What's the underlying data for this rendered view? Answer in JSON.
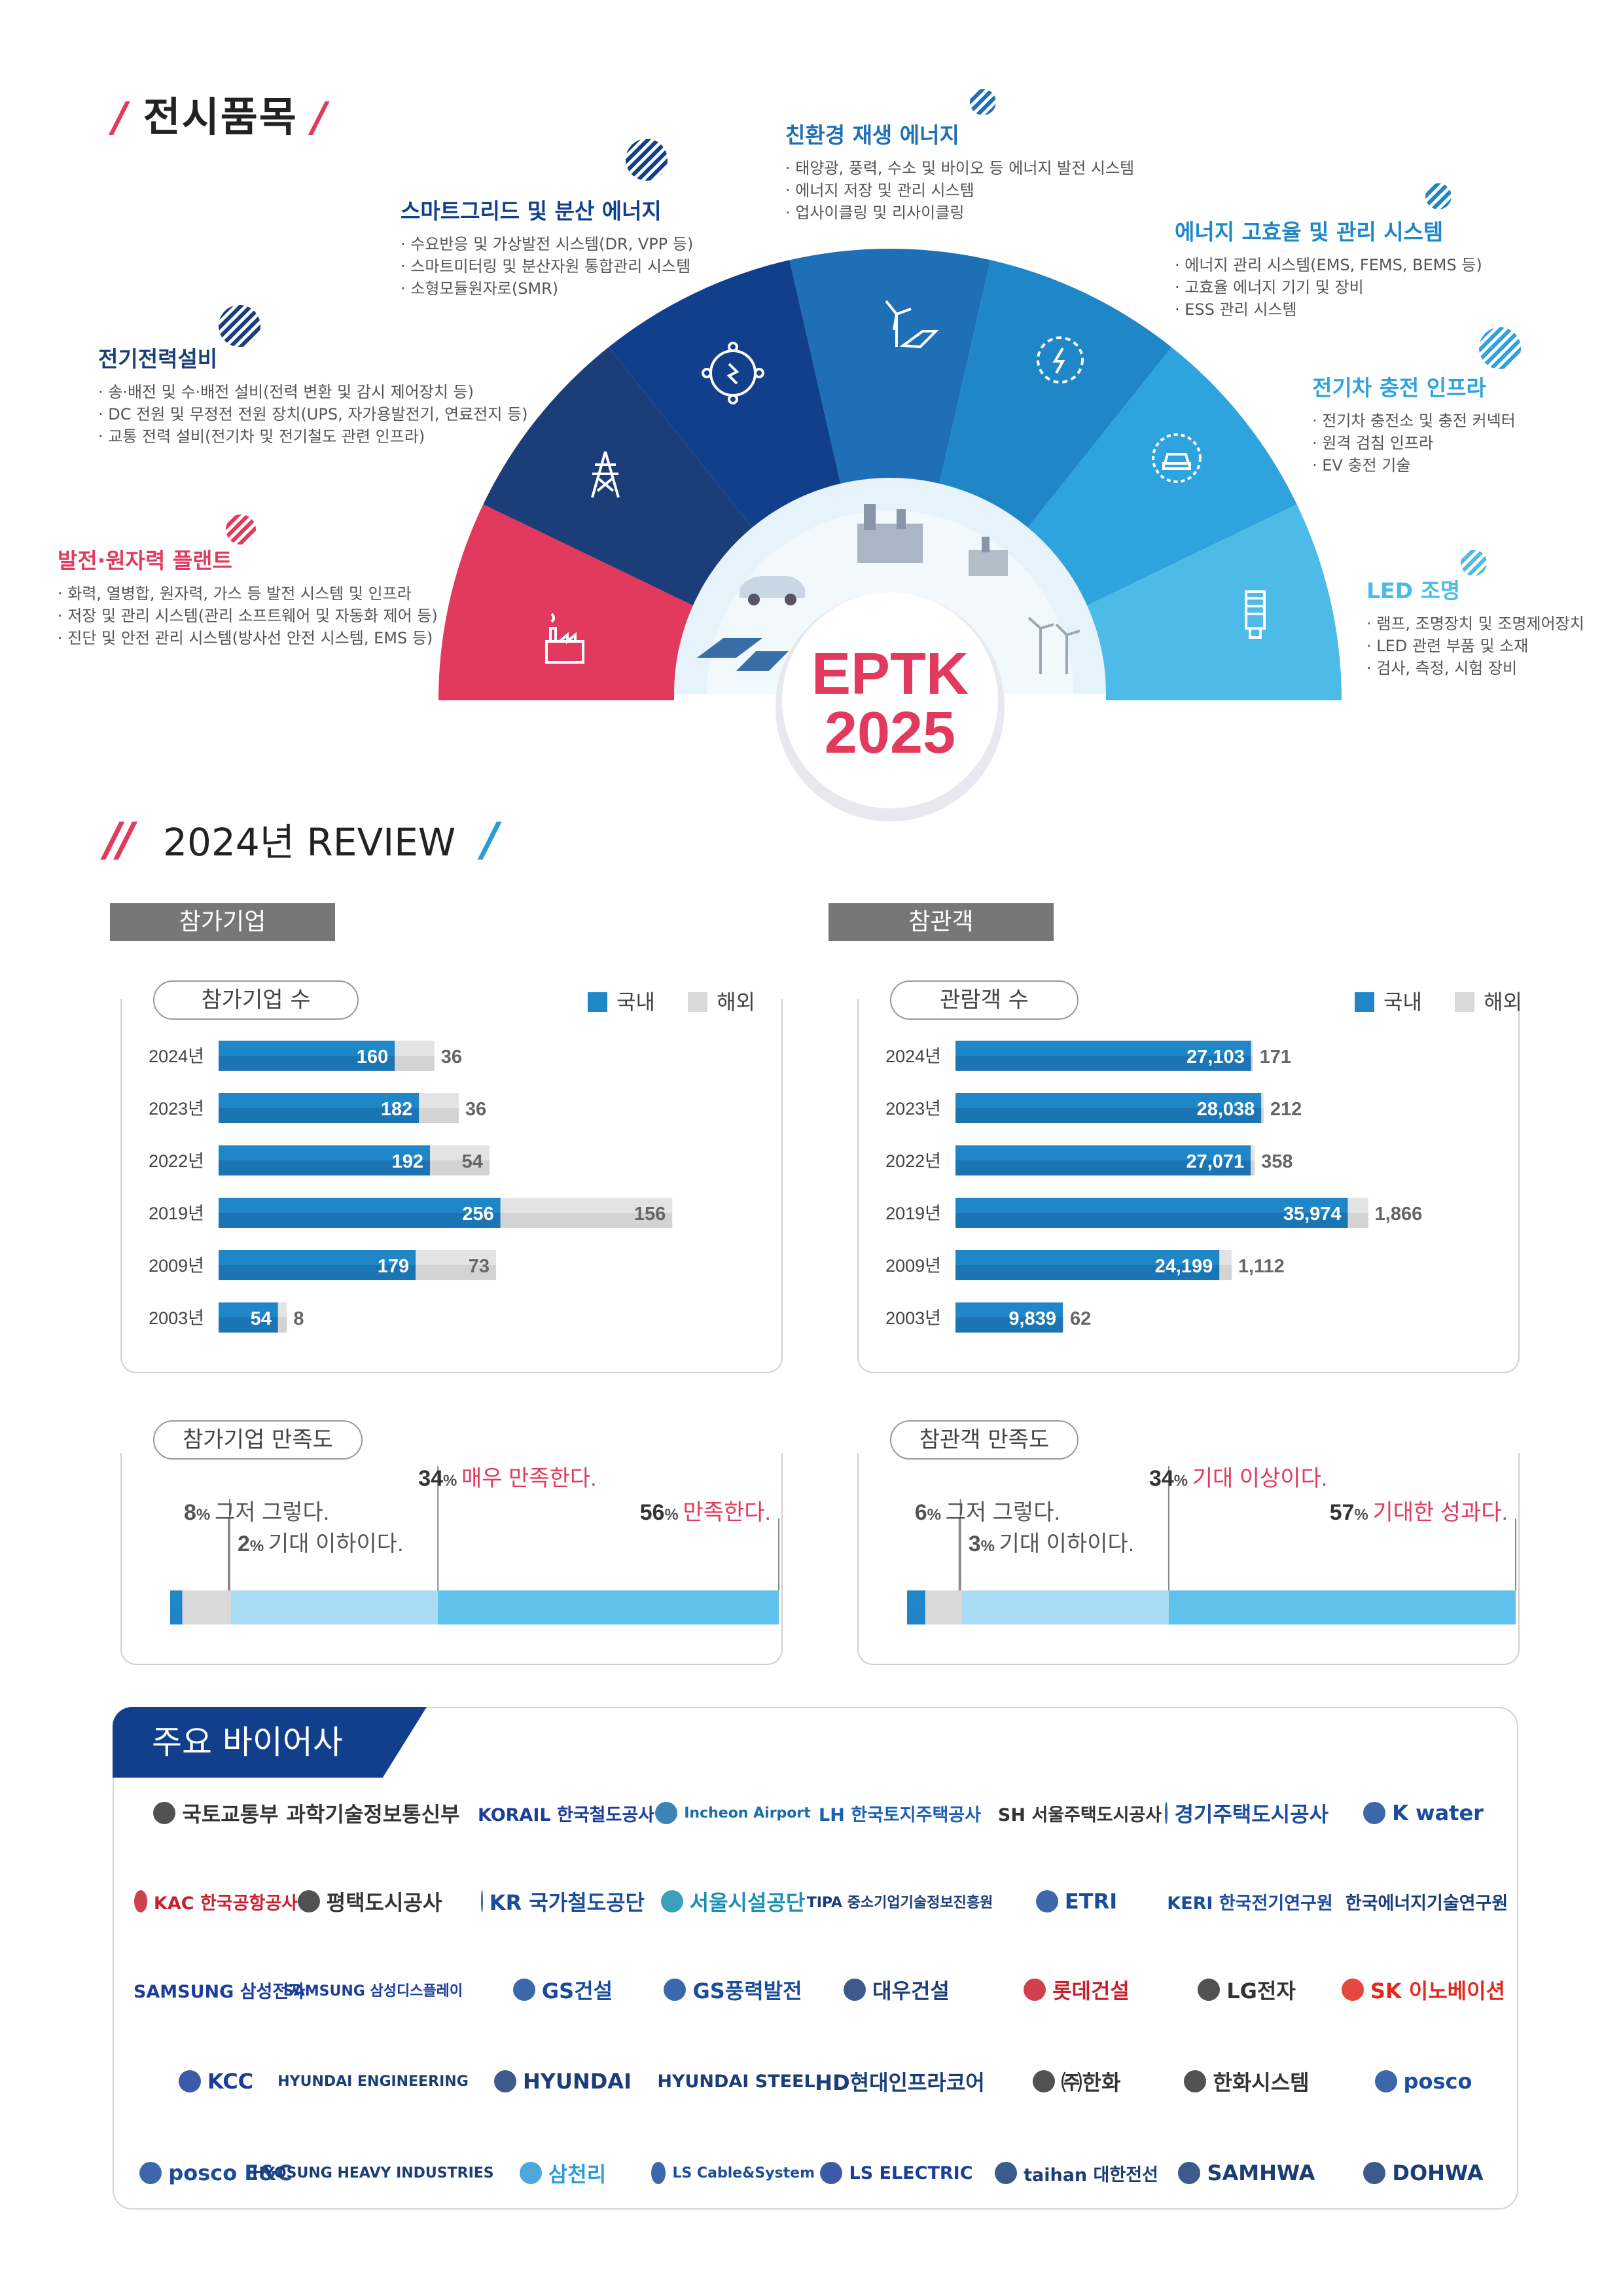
{
  "section1": {
    "title": "전시품목",
    "slash": "/",
    "center": {
      "line1": "EPTK",
      "line2": "2025"
    },
    "categories": [
      {
        "id": "plant",
        "title": "발전·원자력 플랜트",
        "color": "#e23a5e",
        "items": [
          "화력, 열병합, 원자력, 가스 등 발전 시스템 및 인프라",
          "저장 및 관리 시스템(관리 소프트웨어 및 자동화 제어 등)",
          "진단 및 안전 관리 시스템(방사선 안전 시스템, EMS 등)"
        ]
      },
      {
        "id": "power",
        "title": "전기전력설비",
        "color": "#1b3d78",
        "items": [
          "송·배전 및 수·배전 설비(전력 변환 및 감시 제어장치 등)",
          "DC 전원 및 무정전 전원 장치(UPS, 자가용발전기, 연료전지 등)",
          "교통 전력 설비(전기차 및 전기철도 관련 인프라)"
        ]
      },
      {
        "id": "grid",
        "title": "스마트그리드 및 분산 에너지",
        "color": "#123f8c",
        "items": [
          "수요반응 및 가상발전 시스템(DR, VPP 등)",
          "스마트미터링 및 분산자원 통합관리 시스템",
          "소형모듈원자로(SMR)"
        ]
      },
      {
        "id": "renew",
        "title": "친환경 재생 에너지",
        "color": "#1f6fb6",
        "items": [
          "태양광, 풍력, 수소 및 바이오 등 에너지 발전 시스템",
          "에너지 저장 및 관리 시스템",
          "업사이클링 및 리사이클링"
        ]
      },
      {
        "id": "eff",
        "title": "에너지 고효율 및 관리 시스템",
        "color": "#1f86c8",
        "items": [
          "에너지 관리 시스템(EMS, FEMS, BEMS 등)",
          "고효율 에너지 기기 및 장비",
          "ESS 관리 시스템"
        ]
      },
      {
        "id": "ev",
        "title": "전기차 충전 인프라",
        "color": "#2ea3dd",
        "items": [
          "전기차 충전소 및 충전 커넥터",
          "원격 검침 인프라",
          "EV 충전 기술"
        ]
      },
      {
        "id": "led",
        "title": "LED 조명",
        "color": "#4dbbe8",
        "items": [
          "램프, 조명장치 및 조명제어장치",
          "LED 관련 부품 및 소재",
          "검사, 측정, 시험 장비"
        ]
      }
    ]
  },
  "section2": {
    "title": "2024년 REVIEW",
    "slash_red": "//",
    "slash_blue": "/",
    "tab_companies": "참가기업",
    "tab_visitors": "참관객",
    "legend_domestic": "국내",
    "legend_overseas": "해외",
    "colors": {
      "domestic": "#1f86c8",
      "overseas": "#d9d9d9"
    }
  },
  "chart_data": [
    {
      "type": "bar",
      "title": "참가기업 수",
      "orientation": "horizontal",
      "stacked": true,
      "categories": [
        "2024년",
        "2023년",
        "2022년",
        "2019년",
        "2009년",
        "2003년"
      ],
      "series": [
        {
          "name": "국내",
          "values": [
            160,
            182,
            192,
            256,
            179,
            54
          ]
        },
        {
          "name": "해외",
          "values": [
            36,
            36,
            54,
            156,
            73,
            8
          ]
        }
      ],
      "value_labels": {
        "국내": [
          "160",
          "182",
          "192",
          "256",
          "179",
          "54"
        ],
        "해외": [
          "36",
          "36",
          "54",
          "156",
          "73",
          "8"
        ]
      },
      "legend": "top-right"
    },
    {
      "type": "bar",
      "title": "관람객 수",
      "orientation": "horizontal",
      "stacked": true,
      "categories": [
        "2024년",
        "2023년",
        "2022년",
        "2019년",
        "2009년",
        "2003년"
      ],
      "series": [
        {
          "name": "국내",
          "values": [
            27103,
            28038,
            27071,
            35974,
            24199,
            9839
          ]
        },
        {
          "name": "해외",
          "values": [
            171,
            212,
            358,
            1866,
            1112,
            62
          ]
        }
      ],
      "value_labels": {
        "국내": [
          "27,103",
          "28,038",
          "27,071",
          "35,974",
          "24,199",
          "9,839"
        ],
        "해외": [
          "171",
          "212",
          "358",
          "1,866",
          "1,112",
          "62"
        ]
      },
      "legend": "top-right"
    },
    {
      "type": "bar",
      "title": "참가기업 만족도",
      "orientation": "horizontal",
      "stacked": true,
      "unit": "%",
      "segments": [
        {
          "label": "기대 이하이다.",
          "value": 2,
          "pct": "2%",
          "highlight": false
        },
        {
          "label": "그저 그렇다.",
          "value": 8,
          "pct": "8%",
          "highlight": false
        },
        {
          "label": "만족한다.",
          "value": 56,
          "pct": "56%",
          "highlight": true
        },
        {
          "label": "매우 만족한다.",
          "value": 34,
          "pct": "34%",
          "highlight": true
        }
      ]
    },
    {
      "type": "bar",
      "title": "참관객 만족도",
      "orientation": "horizontal",
      "stacked": true,
      "unit": "%",
      "segments": [
        {
          "label": "기대 이하이다.",
          "value": 3,
          "pct": "3%",
          "highlight": false
        },
        {
          "label": "그저 그렇다.",
          "value": 6,
          "pct": "6%",
          "highlight": false
        },
        {
          "label": "기대한 성과다.",
          "value": 57,
          "pct": "57%",
          "highlight": true
        },
        {
          "label": "기대 이상이다.",
          "value": 34,
          "pct": "34%",
          "highlight": true
        }
      ]
    }
  ],
  "section3": {
    "title": "주요 바이어사",
    "logos": [
      [
        "국토교통부",
        "과학기술정보통신부",
        "KORAIL 한국철도공사",
        "Incheon Airport",
        "LH 한국토지주택공사",
        "SH 서울주택도시공사",
        "경기주택도시공사",
        "K water"
      ],
      [
        "KAC 한국공항공사",
        "평택도시공사",
        "KR 국가철도공단",
        "서울시설공단",
        "TIPA 중소기업기술정보진흥원",
        "ETRI",
        "KERI 한국전기연구원",
        "한국에너지기술연구원"
      ],
      [
        "SAMSUNG 삼성전자",
        "SAMSUNG 삼성디스플레이",
        "GS건설",
        "GS풍력발전",
        "대우건설",
        "롯데건설",
        "LG전자",
        "SK 이노베이션"
      ],
      [
        "KCC",
        "HYUNDAI ENGINEERING",
        "HYUNDAI",
        "HYUNDAI STEEL",
        "HD현대인프라코어",
        "㈜한화",
        "한화시스템",
        "posco"
      ],
      [
        "posco E&C",
        "HYOSUNG HEAVY INDUSTRIES",
        "삼천리",
        "LS Cable&System",
        "LS ELECTRIC",
        "taihan 대한전선",
        "SAMHWA",
        "DOHWA"
      ]
    ],
    "logo_colors": [
      [
        "#333333",
        "#333333",
        "#1b3d9b",
        "#1a6ea8",
        "#1a5fb4",
        "#333333",
        "#1b4c9c",
        "#1b4c9c"
      ],
      [
        "#c8202f",
        "#333333",
        "#1b4c9c",
        "#1a8fb0",
        "#1b3d78",
        "#1b4c9c",
        "#1b4c9c",
        "#1b3d78"
      ],
      [
        "#1b3d9b",
        "#1b3d9b",
        "#1b4c9c",
        "#1b4c9c",
        "#1b3d78",
        "#c8202f",
        "#333333",
        "#e2281f"
      ],
      [
        "#1b3d9b",
        "#1b3d78",
        "#1b3d78",
        "#1b3d78",
        "#1b3d78",
        "#333333",
        "#333333",
        "#1b4c9c"
      ],
      [
        "#1b4c9c",
        "#1b3d78",
        "#2e9ad6",
        "#1b4c9c",
        "#1b3d9b",
        "#1b3d78",
        "#1b3d78",
        "#1b3d78"
      ]
    ]
  }
}
